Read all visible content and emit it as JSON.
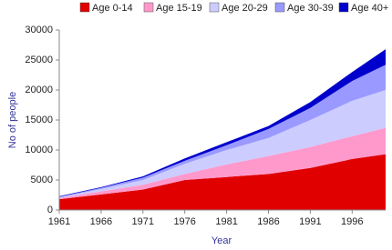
{
  "chart_data": {
    "type": "stacked-area",
    "x_label": "Year",
    "y_label": "No of people",
    "x": [
      1961,
      1966,
      1971,
      1976,
      1981,
      1986,
      1991,
      1996,
      2000
    ],
    "series": [
      {
        "name": "Age 0-14",
        "color": "#e00000",
        "values": [
          1800,
          2600,
          3400,
          5000,
          5500,
          6000,
          7000,
          8500,
          9300
        ]
      },
      {
        "name": "Age 15-19",
        "color": "#ff99cc",
        "values": [
          200,
          500,
          800,
          1000,
          2100,
          3000,
          3500,
          3800,
          4400
        ]
      },
      {
        "name": "Age 20-29",
        "color": "#ccccff",
        "values": [
          100,
          400,
          800,
          1700,
          2400,
          3000,
          4500,
          5900,
          6300
        ]
      },
      {
        "name": "Age 30-39",
        "color": "#9999ff",
        "values": [
          100,
          200,
          400,
          500,
          800,
          1500,
          2000,
          3300,
          4200
        ]
      },
      {
        "name": "Age 40+",
        "color": "#0000cc",
        "values": [
          100,
          100,
          200,
          400,
          500,
          500,
          1000,
          1500,
          2600
        ]
      }
    ],
    "xlim": [
      1961,
      2000
    ],
    "xticks": [
      1961,
      1966,
      1971,
      1976,
      1981,
      1986,
      1991,
      1996
    ],
    "ylim": [
      0,
      30000
    ],
    "yticks": [
      0,
      5000,
      10000,
      15000,
      20000,
      25000,
      30000
    ]
  }
}
